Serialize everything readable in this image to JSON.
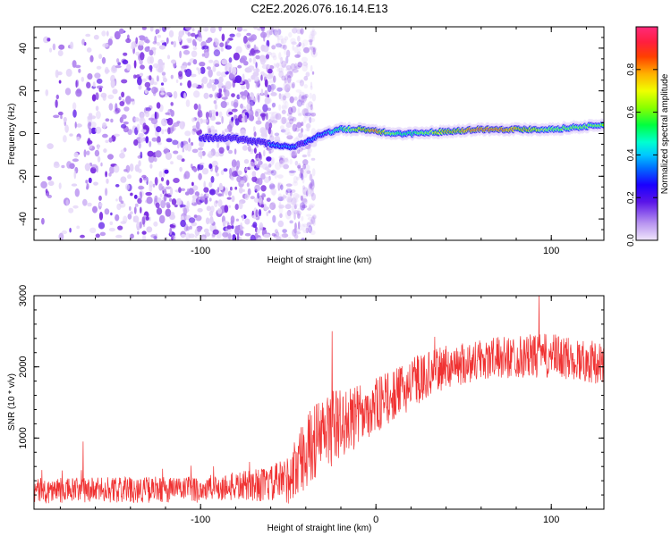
{
  "figure": {
    "title": "C2E2.2026.076.16.14.E13"
  },
  "chart_data": [
    {
      "type": "heatmap",
      "xlabel": "Height of straight line (km)",
      "ylabel": "Frequency (Hz)",
      "xlim": [
        -195,
        130
      ],
      "ylim": [
        -50,
        50
      ],
      "x_ticks": [
        -100,
        0,
        100
      ],
      "x_tick_labels": [
        "-100",
        "",
        "100"
      ],
      "y_ticks": [
        -40,
        -20,
        0,
        20,
        40
      ],
      "y_tick_labels": [
        "-40",
        "-20",
        "0",
        "20",
        "40"
      ],
      "colorbar": {
        "label": "Normalized spectral amplitude",
        "range": [
          0,
          1
        ],
        "ticks": [
          0.0,
          0.2,
          0.4,
          0.6,
          0.8
        ],
        "tick_labels": [
          "0.0",
          "0.2",
          "0.4",
          "0.6",
          "0.8"
        ],
        "colors": [
          "#e8d8fb",
          "#b894f0",
          "#7a2ee0",
          "#1a00ff",
          "#00b4ff",
          "#00ffd0",
          "#00ff40",
          "#88ff00",
          "#ffd800",
          "#ff8000",
          "#ff1f40",
          "#ff2a7a"
        ]
      },
      "ridge": {
        "x": [
          -95,
          -85,
          -75,
          -65,
          -55,
          -48,
          -42,
          -38,
          -30,
          -20,
          -10,
          0,
          10,
          20,
          40,
          60,
          80,
          100,
          115,
          130
        ],
        "freq": [
          -2,
          -2,
          -3,
          -4,
          -6,
          -6,
          -5,
          -3,
          0,
          2,
          2,
          1,
          0,
          0,
          1,
          2,
          2,
          2,
          3,
          4
        ],
        "amplitude": [
          0.25,
          0.3,
          0.28,
          0.3,
          0.35,
          0.35,
          0.3,
          0.35,
          0.4,
          0.55,
          0.75,
          0.9,
          0.6,
          0.55,
          0.8,
          0.9,
          0.85,
          0.65,
          0.6,
          0.65
        ]
      },
      "noise_region_x": [
        -195,
        -35
      ]
    },
    {
      "type": "line",
      "xlabel": "Height of straight line (km)",
      "ylabel": "SNR (10 * v/v)",
      "xlim": [
        -195,
        130
      ],
      "ylim": [
        0,
        3000
      ],
      "x_ticks": [
        -100,
        0,
        100
      ],
      "x_tick_labels": [
        "-100",
        "0",
        "100"
      ],
      "y_ticks": [
        1000,
        2000,
        3000
      ],
      "y_tick_labels": [
        "1000",
        "2000",
        "3000"
      ],
      "color": "#f03232",
      "envelope": {
        "x": [
          -195,
          -150,
          -100,
          -80,
          -60,
          -50,
          -45,
          -40,
          -35,
          -30,
          -25,
          -20,
          -15,
          -10,
          -5,
          0,
          10,
          20,
          30,
          40,
          50,
          60,
          80,
          100,
          115,
          130
        ],
        "mean": [
          260,
          270,
          280,
          320,
          350,
          420,
          600,
          800,
          950,
          1050,
          1150,
          1200,
          1250,
          1300,
          1400,
          1450,
          1600,
          1750,
          1900,
          2000,
          2050,
          2100,
          2150,
          2150,
          2100,
          2050
        ],
        "spread": [
          180,
          180,
          190,
          200,
          250,
          350,
          450,
          500,
          550,
          550,
          550,
          500,
          450,
          450,
          400,
          400,
          350,
          350,
          320,
          300,
          300,
          300,
          300,
          320,
          300,
          300
        ]
      },
      "spikes": [
        {
          "x": -167,
          "y": 950
        },
        {
          "x": -25,
          "y": 2500
        },
        {
          "x": 93,
          "y": 3000
        }
      ]
    }
  ]
}
